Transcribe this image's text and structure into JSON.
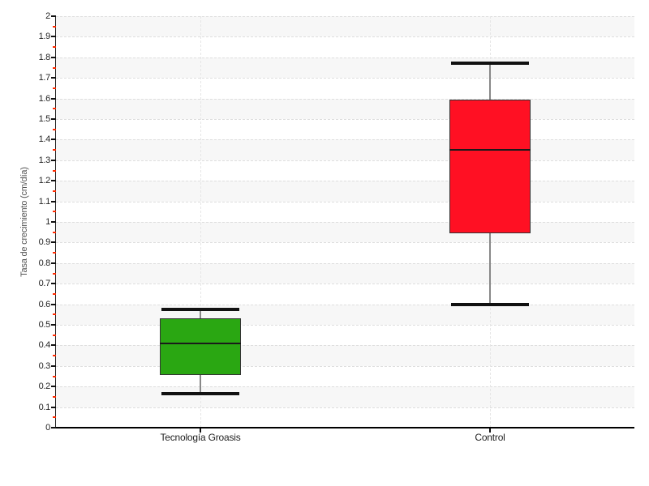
{
  "chart_data": {
    "type": "boxplot",
    "title": "",
    "xlabel": "",
    "ylabel": "Tasa de crecimiento (cm/día)",
    "categories": [
      "Tecnología Groasis",
      "Control"
    ],
    "ylim": [
      0,
      2
    ],
    "y_ticks": [
      "0",
      "0.1",
      "0.2",
      "0.3",
      "0.4",
      "0.5",
      "0.6",
      "0.7",
      "0.8",
      "0.9",
      "1",
      "1.1",
      "1.2",
      "1.3",
      "1.4",
      "1.5",
      "1.6",
      "1.7",
      "1.8",
      "1.9",
      "2"
    ],
    "y_minor_tick_step": 0.05,
    "legend": "none",
    "grid": {
      "horizontal": "dashed at every 0.1",
      "vertical": "dashed at category centers",
      "background_bands": "alternating light-gray / white stripes every 0.1"
    },
    "series": [
      {
        "name": "Tecnología Groasis",
        "min": 0.165,
        "q1": 0.255,
        "median": 0.41,
        "q3": 0.53,
        "max": 0.575,
        "fill": "#2aa712"
      },
      {
        "name": "Control",
        "min": 0.6,
        "q1": 0.945,
        "median": 1.35,
        "q3": 1.595,
        "max": 1.77,
        "fill": "#ff1023"
      }
    ],
    "style": {
      "band_color": "#f7f7f7",
      "h_gridline_color": "#dedede",
      "v_gridline_color": "#e6e6e6",
      "axis_color": "#111111",
      "major_tick_color": "#111111",
      "minor_tick_color": "#ff2a00",
      "whisker_stem_color": "#888888",
      "whisker_cap_color": "#111111",
      "box_border_color": "#333333",
      "median_line_color": "#1a1a1a",
      "tick_label_color": "#222222",
      "axis_title_color": "#555555"
    }
  }
}
